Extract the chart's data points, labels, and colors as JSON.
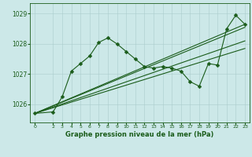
{
  "title": "Graphe pression niveau de la mer (hPa)",
  "background_color": "#cce8e8",
  "grid_color": "#aacccc",
  "line_color": "#1a5c1a",
  "xlim": [
    -0.5,
    23.5
  ],
  "ylim": [
    1025.4,
    1029.35
  ],
  "yticks": [
    1026,
    1027,
    1028,
    1029
  ],
  "xticks": [
    0,
    2,
    3,
    4,
    5,
    6,
    7,
    8,
    9,
    10,
    11,
    12,
    13,
    14,
    15,
    16,
    17,
    18,
    19,
    20,
    21,
    22,
    23
  ],
  "series": [
    {
      "x": [
        0,
        2,
        3,
        4,
        5,
        6,
        7,
        8,
        9,
        10,
        11,
        12,
        13,
        14,
        15,
        16,
        17,
        18,
        19,
        20,
        21,
        22,
        23
      ],
      "y": [
        1025.7,
        1025.75,
        1026.25,
        1027.1,
        1027.35,
        1027.6,
        1028.05,
        1028.2,
        1028.0,
        1027.75,
        1027.5,
        1027.25,
        1027.2,
        1027.25,
        1027.2,
        1027.1,
        1026.75,
        1026.6,
        1027.35,
        1027.3,
        1028.5,
        1028.95,
        1028.65
      ],
      "marker": "D",
      "markersize": 2.5,
      "linewidth": 0.8
    },
    {
      "x": [
        0,
        23
      ],
      "y": [
        1025.7,
        1028.65
      ],
      "marker": null,
      "markersize": 0,
      "linewidth": 0.8
    },
    {
      "x": [
        0,
        23
      ],
      "y": [
        1025.7,
        1028.55
      ],
      "marker": null,
      "markersize": 0,
      "linewidth": 0.8
    },
    {
      "x": [
        0,
        23
      ],
      "y": [
        1025.7,
        1028.1
      ],
      "marker": null,
      "markersize": 0,
      "linewidth": 0.8
    },
    {
      "x": [
        0,
        23
      ],
      "y": [
        1025.7,
        1027.85
      ],
      "marker": null,
      "markersize": 0,
      "linewidth": 0.8
    }
  ]
}
